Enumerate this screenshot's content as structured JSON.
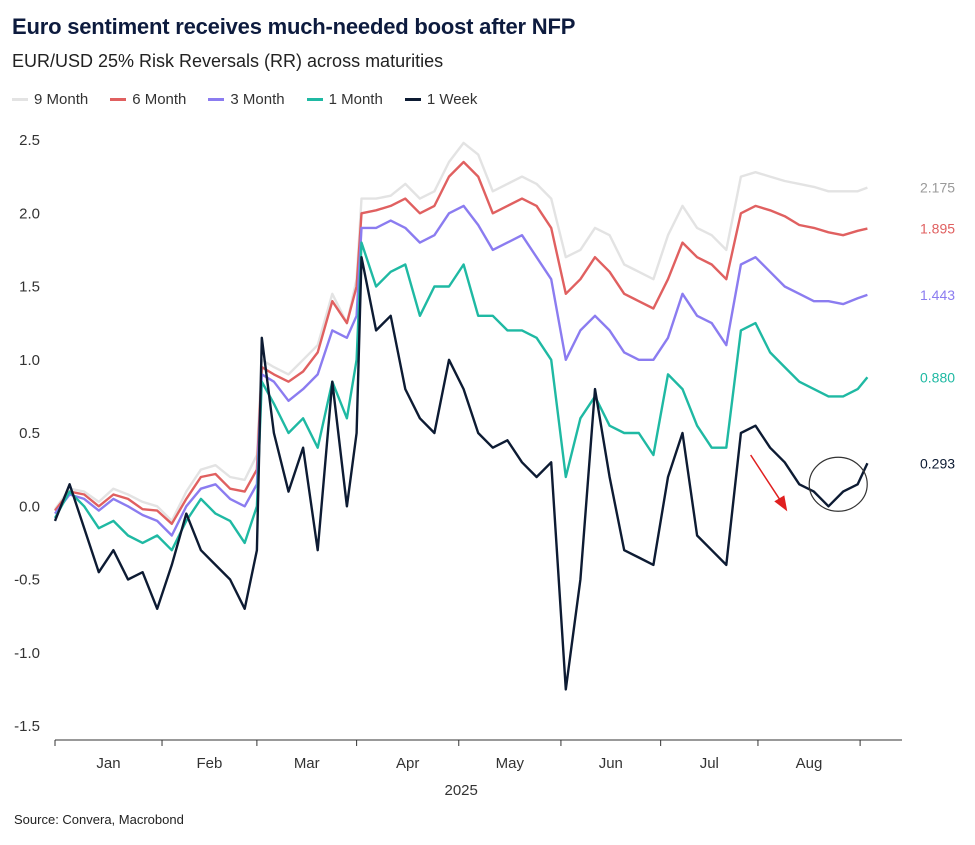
{
  "header": {
    "title": "Euro sentiment receives much-needed boost after NFP",
    "subtitle": "EUR/USD 25% Risk Reversals (RR) across maturities"
  },
  "footer": {
    "source": "Source: Convera, Macrobond"
  },
  "chart_data": {
    "type": "line",
    "title": "Euro sentiment receives much-needed boost after NFP",
    "subtitle": "EUR/USD 25% Risk Reversals (RR) across maturities",
    "xlabel": "2025",
    "ylabel": "",
    "ylim": [
      -1.5,
      2.5
    ],
    "yticks": [
      "2.5",
      "2.0",
      "1.5",
      "1.0",
      "0.5",
      "0.0",
      "-0.5",
      "-1.0",
      "-1.5"
    ],
    "ytick_values": [
      2.5,
      2.0,
      1.5,
      1.0,
      0.5,
      0.0,
      -0.5,
      -1.0,
      -1.5
    ],
    "xlim": [
      0,
      34
    ],
    "month_labels": [
      "Jan",
      "Feb",
      "Mar",
      "Apr",
      "May",
      "Jun",
      "Jul",
      "Aug"
    ],
    "month_boundaries": [
      0,
      4.4,
      8.3,
      12.4,
      16.6,
      20.8,
      24.9,
      28.9,
      33.1
    ],
    "legend_position": "top-left",
    "series": [
      {
        "name": "9 Month",
        "color": "#e3e3e3",
        "end_label": "2.175",
        "x": [
          0,
          0.6,
          1.2,
          1.8,
          2.4,
          3,
          3.6,
          4.2,
          4.8,
          5.4,
          6,
          6.6,
          7.2,
          7.8,
          8.3,
          8.5,
          9,
          9.6,
          10.2,
          10.8,
          11.4,
          12,
          12.4,
          12.6,
          13.2,
          13.8,
          14.4,
          15,
          15.6,
          16.2,
          16.8,
          17.4,
          18,
          18.6,
          19.2,
          19.8,
          20.4,
          21,
          21.6,
          22.2,
          22.8,
          23.4,
          24,
          24.6,
          25.2,
          25.8,
          26.4,
          27,
          27.6,
          28.2,
          28.8,
          29.4,
          30,
          30.6,
          31.2,
          31.8,
          32.4,
          33,
          33.4
        ],
        "y": [
          -0.02,
          0.12,
          0.1,
          0.03,
          0.12,
          0.08,
          0.03,
          0.0,
          -0.1,
          0.1,
          0.25,
          0.28,
          0.2,
          0.18,
          0.35,
          1.0,
          0.95,
          0.9,
          1.0,
          1.1,
          1.45,
          1.25,
          1.55,
          2.1,
          2.1,
          2.12,
          2.2,
          2.1,
          2.15,
          2.35,
          2.48,
          2.4,
          2.15,
          2.2,
          2.25,
          2.2,
          2.1,
          1.7,
          1.75,
          1.9,
          1.85,
          1.65,
          1.6,
          1.55,
          1.85,
          2.05,
          1.9,
          1.85,
          1.75,
          2.25,
          2.28,
          2.25,
          2.22,
          2.2,
          2.18,
          2.15,
          2.15,
          2.15,
          2.175
        ]
      },
      {
        "name": "6 Month",
        "color": "#e06060",
        "end_label": "1.895",
        "x": [
          0,
          0.6,
          1.2,
          1.8,
          2.4,
          3,
          3.6,
          4.2,
          4.8,
          5.4,
          6,
          6.6,
          7.2,
          7.8,
          8.3,
          8.5,
          9,
          9.6,
          10.2,
          10.8,
          11.4,
          12,
          12.4,
          12.6,
          13.2,
          13.8,
          14.4,
          15,
          15.6,
          16.2,
          16.8,
          17.4,
          18,
          18.6,
          19.2,
          19.8,
          20.4,
          21,
          21.6,
          22.2,
          22.8,
          23.4,
          24,
          24.6,
          25.2,
          25.8,
          26.4,
          27,
          27.6,
          28.2,
          28.8,
          29.4,
          30,
          30.6,
          31.2,
          31.8,
          32.4,
          33,
          33.4
        ],
        "y": [
          -0.03,
          0.1,
          0.08,
          0.0,
          0.08,
          0.05,
          -0.02,
          -0.03,
          -0.12,
          0.05,
          0.2,
          0.22,
          0.12,
          0.1,
          0.25,
          0.95,
          0.9,
          0.85,
          0.92,
          1.05,
          1.4,
          1.25,
          1.5,
          2.0,
          2.02,
          2.05,
          2.1,
          2.0,
          2.05,
          2.25,
          2.35,
          2.25,
          2.0,
          2.05,
          2.1,
          2.05,
          1.9,
          1.45,
          1.55,
          1.7,
          1.6,
          1.45,
          1.4,
          1.35,
          1.55,
          1.8,
          1.7,
          1.65,
          1.55,
          2.0,
          2.05,
          2.02,
          1.98,
          1.92,
          1.9,
          1.87,
          1.85,
          1.88,
          1.895
        ]
      },
      {
        "name": "3 Month",
        "color": "#8b7cf0",
        "end_label": "1.443",
        "x": [
          0,
          0.6,
          1.2,
          1.8,
          2.4,
          3,
          3.6,
          4.2,
          4.8,
          5.4,
          6,
          6.6,
          7.2,
          7.8,
          8.3,
          8.5,
          9,
          9.6,
          10.2,
          10.8,
          11.4,
          12,
          12.4,
          12.6,
          13.2,
          13.8,
          14.4,
          15,
          15.6,
          16.2,
          16.8,
          17.4,
          18,
          18.6,
          19.2,
          19.8,
          20.4,
          21,
          21.6,
          22.2,
          22.8,
          23.4,
          24,
          24.6,
          25.2,
          25.8,
          26.4,
          27,
          27.6,
          28.2,
          28.8,
          29.4,
          30,
          30.6,
          31.2,
          31.8,
          32.4,
          33,
          33.4
        ],
        "y": [
          -0.05,
          0.08,
          0.05,
          -0.03,
          0.05,
          0.0,
          -0.06,
          -0.1,
          -0.2,
          0.0,
          0.12,
          0.15,
          0.05,
          0.0,
          0.15,
          0.9,
          0.85,
          0.72,
          0.8,
          0.9,
          1.2,
          1.15,
          1.3,
          1.9,
          1.9,
          1.95,
          1.9,
          1.8,
          1.85,
          2.0,
          2.05,
          1.92,
          1.75,
          1.8,
          1.85,
          1.7,
          1.55,
          1.0,
          1.2,
          1.3,
          1.2,
          1.05,
          1.0,
          1.0,
          1.15,
          1.45,
          1.3,
          1.25,
          1.1,
          1.65,
          1.7,
          1.6,
          1.5,
          1.45,
          1.4,
          1.4,
          1.38,
          1.42,
          1.443
        ]
      },
      {
        "name": "1 Month",
        "color": "#1fb9a3",
        "end_label": "0.880",
        "x": [
          0,
          0.6,
          1.2,
          1.8,
          2.4,
          3,
          3.6,
          4.2,
          4.8,
          5.4,
          6,
          6.6,
          7.2,
          7.8,
          8.3,
          8.5,
          9,
          9.6,
          10.2,
          10.8,
          11.4,
          12,
          12.4,
          12.6,
          13.2,
          13.8,
          14.4,
          15,
          15.6,
          16.2,
          16.8,
          17.4,
          18,
          18.6,
          19.2,
          19.8,
          20.4,
          21,
          21.6,
          22.2,
          22.8,
          23.4,
          24,
          24.6,
          25.2,
          25.8,
          26.4,
          27,
          27.6,
          28.2,
          28.8,
          29.4,
          30,
          30.6,
          31.2,
          31.8,
          32.4,
          33,
          33.4
        ],
        "y": [
          -0.08,
          0.1,
          0.0,
          -0.15,
          -0.1,
          -0.2,
          -0.25,
          -0.2,
          -0.3,
          -0.1,
          0.05,
          -0.05,
          -0.1,
          -0.25,
          0.0,
          0.85,
          0.7,
          0.5,
          0.6,
          0.4,
          0.85,
          0.6,
          1.0,
          1.8,
          1.5,
          1.6,
          1.65,
          1.3,
          1.5,
          1.5,
          1.65,
          1.3,
          1.3,
          1.2,
          1.2,
          1.15,
          1.0,
          0.2,
          0.6,
          0.75,
          0.55,
          0.5,
          0.5,
          0.35,
          0.9,
          0.8,
          0.55,
          0.4,
          0.4,
          1.2,
          1.25,
          1.05,
          0.95,
          0.85,
          0.8,
          0.75,
          0.75,
          0.8,
          0.88
        ]
      },
      {
        "name": "1 Week",
        "color": "#0d1b33",
        "end_label": "0.293",
        "x": [
          0,
          0.6,
          1.2,
          1.8,
          2.4,
          3,
          3.6,
          4.2,
          4.8,
          5.4,
          6,
          6.6,
          7.2,
          7.8,
          8.3,
          8.5,
          9,
          9.6,
          10.2,
          10.8,
          11.4,
          12,
          12.4,
          12.6,
          13.2,
          13.8,
          14.4,
          15,
          15.6,
          16.2,
          16.8,
          17.4,
          18,
          18.6,
          19.2,
          19.8,
          20.4,
          21,
          21.6,
          22.2,
          22.8,
          23.4,
          24,
          24.6,
          25.2,
          25.8,
          26.4,
          27,
          27.6,
          28.2,
          28.8,
          29.4,
          30,
          30.6,
          31.2,
          31.8,
          32.4,
          33,
          33.4
        ],
        "y": [
          -0.1,
          0.15,
          -0.15,
          -0.45,
          -0.3,
          -0.5,
          -0.45,
          -0.7,
          -0.4,
          -0.05,
          -0.3,
          -0.4,
          -0.5,
          -0.7,
          -0.3,
          1.15,
          0.5,
          0.1,
          0.4,
          -0.3,
          0.85,
          0.0,
          0.5,
          1.7,
          1.2,
          1.3,
          0.8,
          0.6,
          0.5,
          1.0,
          0.8,
          0.5,
          0.4,
          0.45,
          0.3,
          0.2,
          0.3,
          -1.25,
          -0.5,
          0.8,
          0.2,
          -0.3,
          -0.35,
          -0.4,
          0.2,
          0.5,
          -0.2,
          -0.3,
          -0.4,
          0.5,
          0.55,
          0.4,
          0.3,
          0.15,
          0.1,
          0.0,
          0.1,
          0.15,
          0.293
        ]
      }
    ],
    "annotations": [
      "red downward arrow from Jul peak toward Aug",
      "circle around latest 1 Week rebound"
    ]
  }
}
